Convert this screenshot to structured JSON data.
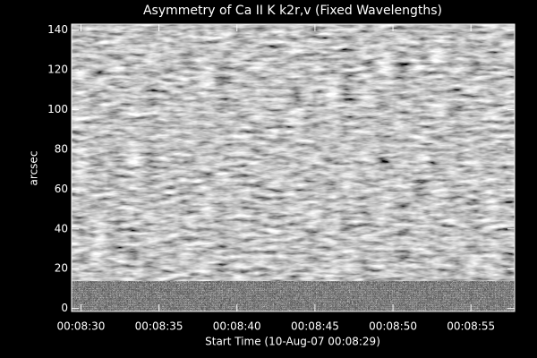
{
  "chart_data": {
    "type": "image",
    "title": "Asymmetry of Ca II K k2r,v (Fixed Wavelengths)",
    "x_label": "Start Time (10-Aug-07 00:08:29)",
    "y_label": "arcsec",
    "xlim": [
      29.4,
      57.8
    ],
    "xticks": [
      {
        "value": 30,
        "label": "00:08:30"
      },
      {
        "value": 35,
        "label": "00:08:35"
      },
      {
        "value": 40,
        "label": "00:08:40"
      },
      {
        "value": 45,
        "label": "00:08:45"
      },
      {
        "value": 50,
        "label": "00:08:50"
      },
      {
        "value": 55,
        "label": "00:08:55"
      }
    ],
    "ylim": [
      -1.5,
      143
    ],
    "yticks": [
      0,
      20,
      40,
      60,
      80,
      100,
      120,
      140
    ],
    "colormap": "gray"
  }
}
